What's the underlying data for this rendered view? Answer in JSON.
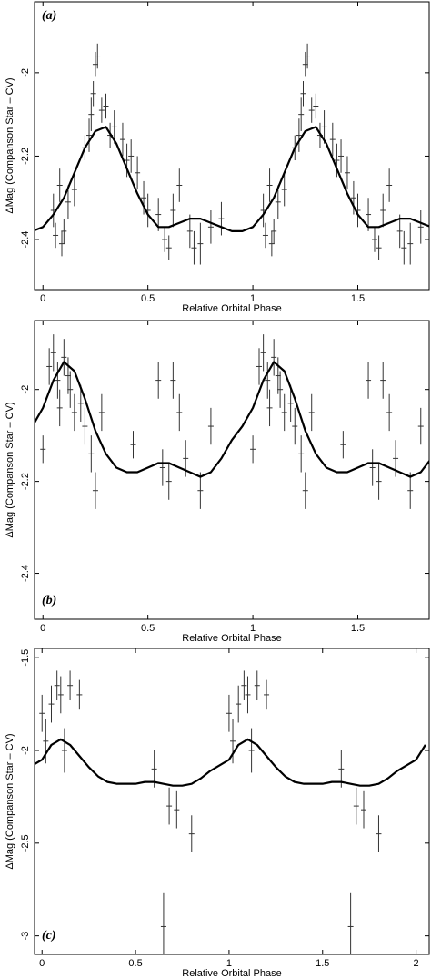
{
  "chart_data": [
    {
      "type": "errorbar",
      "panel_label": "(a)",
      "x_label": "Relative Orbital Phase",
      "y_label": "ΔMag (Companson Star – CV)",
      "xlim": [
        -0.04,
        1.84
      ],
      "ylim": [
        -2.52,
        -1.83
      ],
      "xticks": [
        0,
        0.5,
        1,
        1.5
      ],
      "yticks": [
        -2,
        -2.2,
        -2.4
      ],
      "points": {
        "x": [
          0.05,
          0.06,
          0.09,
          0.1,
          0.08,
          0.12,
          0.15,
          0.2,
          0.22,
          0.23,
          0.24,
          0.25,
          0.26,
          0.28,
          0.3,
          0.32,
          0.34,
          0.38,
          0.4,
          0.42,
          0.45,
          0.48,
          0.5,
          0.55,
          0.58,
          0.6,
          0.62,
          0.65,
          0.7,
          0.72,
          0.75,
          0.8,
          0.85,
          1.05,
          1.06,
          1.09,
          1.1,
          1.08,
          1.12,
          1.15,
          1.2,
          1.22,
          1.23,
          1.24,
          1.25,
          1.26,
          1.28,
          1.3,
          1.32,
          1.34,
          1.38,
          1.4,
          1.42,
          1.45,
          1.48,
          1.5,
          1.55,
          1.58,
          1.6,
          1.62,
          1.65,
          1.7,
          1.72,
          1.75,
          1.8
        ],
        "y": [
          -2.33,
          -2.39,
          -2.41,
          -2.38,
          -2.27,
          -2.31,
          -2.28,
          -2.18,
          -2.15,
          -2.1,
          -2.05,
          -1.98,
          -1.96,
          -2.09,
          -2.08,
          -2.15,
          -2.13,
          -2.16,
          -2.21,
          -2.2,
          -2.24,
          -2.3,
          -2.33,
          -2.34,
          -2.4,
          -2.42,
          -2.33,
          -2.27,
          -2.38,
          -2.42,
          -2.41,
          -2.37,
          -2.35,
          -2.33,
          -2.39,
          -2.41,
          -2.38,
          -2.27,
          -2.31,
          -2.28,
          -2.18,
          -2.15,
          -2.1,
          -2.05,
          -1.98,
          -1.96,
          -2.09,
          -2.08,
          -2.15,
          -2.13,
          -2.16,
          -2.21,
          -2.2,
          -2.24,
          -2.3,
          -2.33,
          -2.34,
          -2.4,
          -2.42,
          -2.33,
          -2.27,
          -2.38,
          -2.42,
          -2.41,
          -2.37
        ],
        "yerr": [
          0.04,
          0.03,
          0.03,
          0.03,
          0.04,
          0.04,
          0.04,
          0.03,
          0.04,
          0.04,
          0.03,
          0.03,
          0.03,
          0.03,
          0.03,
          0.03,
          0.04,
          0.04,
          0.04,
          0.04,
          0.04,
          0.04,
          0.04,
          0.04,
          0.03,
          0.03,
          0.04,
          0.04,
          0.04,
          0.04,
          0.05,
          0.04,
          0.04,
          0.04,
          0.03,
          0.03,
          0.03,
          0.04,
          0.04,
          0.04,
          0.03,
          0.04,
          0.04,
          0.03,
          0.03,
          0.03,
          0.03,
          0.03,
          0.03,
          0.04,
          0.04,
          0.04,
          0.04,
          0.04,
          0.04,
          0.04,
          0.04,
          0.03,
          0.03,
          0.04,
          0.04,
          0.04,
          0.04,
          0.05,
          0.04
        ]
      },
      "fit": {
        "x": [
          -0.05,
          0,
          0.05,
          0.1,
          0.15,
          0.2,
          0.25,
          0.3,
          0.35,
          0.4,
          0.45,
          0.5,
          0.55,
          0.6,
          0.65,
          0.7,
          0.75,
          0.8,
          0.85,
          0.9,
          0.95,
          1,
          1.05,
          1.1,
          1.15,
          1.2,
          1.25,
          1.3,
          1.35,
          1.4,
          1.45,
          1.5,
          1.55,
          1.6,
          1.65,
          1.7,
          1.75,
          1.8,
          1.85
        ],
        "y": [
          -2.38,
          -2.37,
          -2.34,
          -2.3,
          -2.24,
          -2.18,
          -2.14,
          -2.13,
          -2.17,
          -2.23,
          -2.29,
          -2.34,
          -2.37,
          -2.37,
          -2.36,
          -2.35,
          -2.35,
          -2.36,
          -2.37,
          -2.38,
          -2.38,
          -2.37,
          -2.34,
          -2.3,
          -2.24,
          -2.18,
          -2.14,
          -2.13,
          -2.17,
          -2.23,
          -2.29,
          -2.34,
          -2.37,
          -2.37,
          -2.36,
          -2.35,
          -2.35,
          -2.36,
          -2.37
        ]
      }
    },
    {
      "type": "errorbar",
      "panel_label": "(b)",
      "x_label": "Relative Orbital Phase",
      "y_label": "ΔMag (Companson Star – CV)",
      "xlim": [
        -0.04,
        1.84
      ],
      "ylim": [
        -2.5,
        -1.85
      ],
      "xticks": [
        0,
        0.5,
        1,
        1.5
      ],
      "yticks": [
        -2,
        -2.2,
        -2.4
      ],
      "points": {
        "x": [
          0,
          0.03,
          0.05,
          0.07,
          0.08,
          0.1,
          0.12,
          0.13,
          0.15,
          0.18,
          0.2,
          0.23,
          0.25,
          0.28,
          0.43,
          0.55,
          0.57,
          0.6,
          0.62,
          0.65,
          0.68,
          0.75,
          0.8,
          1,
          1.03,
          1.05,
          1.07,
          1.08,
          1.1,
          1.12,
          1.13,
          1.15,
          1.18,
          1.2,
          1.23,
          1.25,
          1.28,
          1.43,
          1.55,
          1.57,
          1.6,
          1.62,
          1.65,
          1.68,
          1.75,
          1.8
        ],
        "y": [
          -2.13,
          -1.95,
          -1.92,
          -1.98,
          -2.04,
          -1.93,
          -1.97,
          -2.0,
          -2.05,
          -2.03,
          -2.08,
          -2.14,
          -2.22,
          -2.05,
          -2.12,
          -1.98,
          -2.17,
          -2.2,
          -1.98,
          -2.05,
          -2.15,
          -2.22,
          -2.08,
          -2.13,
          -1.95,
          -1.92,
          -1.98,
          -2.04,
          -1.93,
          -1.97,
          -2.0,
          -2.05,
          -2.03,
          -2.08,
          -2.14,
          -2.22,
          -2.05,
          -2.12,
          -1.98,
          -2.17,
          -2.2,
          -1.98,
          -2.05,
          -2.15,
          -2.22,
          -2.08
        ],
        "yerr": [
          0.03,
          0.04,
          0.04,
          0.04,
          0.04,
          0.04,
          0.04,
          0.04,
          0.04,
          0.04,
          0.04,
          0.04,
          0.04,
          0.04,
          0.03,
          0.04,
          0.04,
          0.04,
          0.04,
          0.04,
          0.04,
          0.04,
          0.04,
          0.03,
          0.04,
          0.04,
          0.04,
          0.04,
          0.04,
          0.04,
          0.04,
          0.04,
          0.04,
          0.04,
          0.04,
          0.04,
          0.04,
          0.03,
          0.04,
          0.04,
          0.04,
          0.04,
          0.04,
          0.04,
          0.04,
          0.04
        ]
      },
      "fit": {
        "x": [
          -0.05,
          0,
          0.05,
          0.1,
          0.15,
          0.2,
          0.25,
          0.3,
          0.35,
          0.4,
          0.45,
          0.5,
          0.55,
          0.6,
          0.65,
          0.7,
          0.75,
          0.8,
          0.85,
          0.9,
          0.95,
          1,
          1.05,
          1.1,
          1.15,
          1.2,
          1.25,
          1.3,
          1.35,
          1.4,
          1.45,
          1.5,
          1.55,
          1.6,
          1.65,
          1.7,
          1.75,
          1.8,
          1.85
        ],
        "y": [
          -2.08,
          -2.04,
          -1.98,
          -1.94,
          -1.96,
          -2.02,
          -2.09,
          -2.14,
          -2.17,
          -2.18,
          -2.18,
          -2.17,
          -2.16,
          -2.16,
          -2.17,
          -2.18,
          -2.19,
          -2.18,
          -2.15,
          -2.11,
          -2.08,
          -2.04,
          -1.98,
          -1.94,
          -1.96,
          -2.02,
          -2.09,
          -2.14,
          -2.17,
          -2.18,
          -2.18,
          -2.17,
          -2.16,
          -2.16,
          -2.17,
          -2.18,
          -2.19,
          -2.18,
          -2.15
        ]
      }
    },
    {
      "type": "errorbar",
      "panel_label": "(c)",
      "x_label": "Relative Orbital Phase",
      "y_label": "ΔMag (Companson Star – CV)",
      "xlim": [
        -0.04,
        2.07
      ],
      "ylim": [
        -3.1,
        -1.45
      ],
      "xticks": [
        0,
        0.5,
        1,
        1.5,
        2
      ],
      "yticks": [
        -1.5,
        -2,
        -2.5,
        -3
      ],
      "points": {
        "x": [
          0,
          0.02,
          0.05,
          0.08,
          0.1,
          0.12,
          0.15,
          0.2,
          0.6,
          0.65,
          0.68,
          0.72,
          0.8,
          1,
          1.02,
          1.05,
          1.08,
          1.1,
          1.12,
          1.15,
          1.2,
          1.6,
          1.65,
          1.68,
          1.72,
          1.8
        ],
        "y": [
          -1.8,
          -1.95,
          -1.75,
          -1.65,
          -1.7,
          -2.0,
          -1.65,
          -1.7,
          -2.1,
          -2.95,
          -2.3,
          -2.32,
          -2.45,
          -1.8,
          -1.95,
          -1.75,
          -1.65,
          -1.7,
          -2.0,
          -1.65,
          -1.7,
          -2.1,
          -2.95,
          -2.3,
          -2.32,
          -2.45
        ],
        "yerr": [
          0.1,
          0.12,
          0.1,
          0.08,
          0.1,
          0.12,
          0.08,
          0.08,
          0.1,
          0.18,
          0.1,
          0.1,
          0.1,
          0.1,
          0.12,
          0.1,
          0.08,
          0.1,
          0.12,
          0.08,
          0.08,
          0.1,
          0.18,
          0.1,
          0.1,
          0.1
        ]
      },
      "fit": {
        "x": [
          -0.05,
          0,
          0.05,
          0.1,
          0.15,
          0.2,
          0.25,
          0.3,
          0.35,
          0.4,
          0.45,
          0.5,
          0.55,
          0.6,
          0.65,
          0.7,
          0.75,
          0.8,
          0.85,
          0.9,
          0.95,
          1,
          1.05,
          1.1,
          1.15,
          1.2,
          1.25,
          1.3,
          1.35,
          1.4,
          1.45,
          1.5,
          1.55,
          1.6,
          1.65,
          1.7,
          1.75,
          1.8,
          1.85,
          1.9,
          1.95,
          2,
          2.05
        ],
        "y": [
          -2.08,
          -2.05,
          -1.97,
          -1.94,
          -1.97,
          -2.03,
          -2.09,
          -2.14,
          -2.17,
          -2.18,
          -2.18,
          -2.18,
          -2.17,
          -2.17,
          -2.18,
          -2.19,
          -2.19,
          -2.18,
          -2.15,
          -2.11,
          -2.08,
          -2.05,
          -1.97,
          -1.94,
          -1.97,
          -2.03,
          -2.09,
          -2.14,
          -2.17,
          -2.18,
          -2.18,
          -2.18,
          -2.17,
          -2.17,
          -2.18,
          -2.19,
          -2.19,
          -2.18,
          -2.15,
          -2.11,
          -2.08,
          -2.05,
          -1.97
        ]
      }
    }
  ]
}
